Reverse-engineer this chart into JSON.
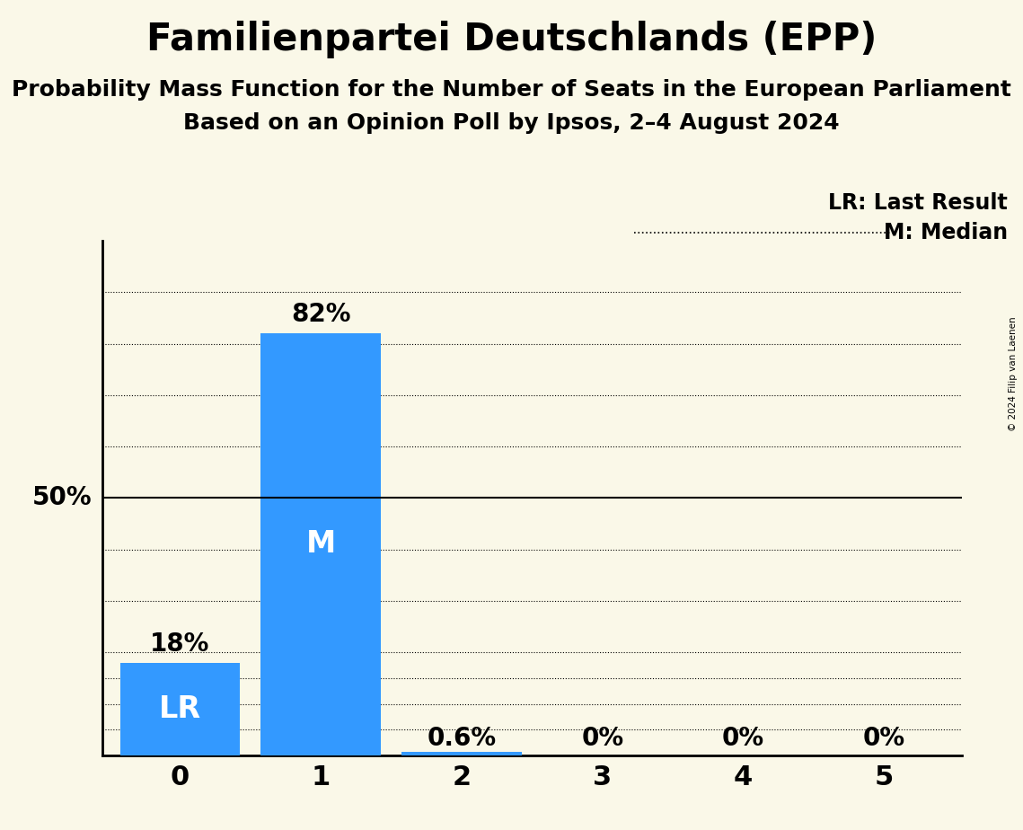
{
  "title": "Familienpartei Deutschlands (EPP)",
  "subtitle1": "Probability Mass Function for the Number of Seats in the European Parliament",
  "subtitle2": "Based on an Opinion Poll by Ipsos, 2–4 August 2024",
  "copyright": "© 2024 Filip van Laenen",
  "x_labels": [
    0,
    1,
    2,
    3,
    4,
    5
  ],
  "values": [
    0.18,
    0.82,
    0.006,
    0.0,
    0.0,
    0.0
  ],
  "value_labels": [
    "18%",
    "82%",
    "0.6%",
    "0%",
    "0%",
    "0%"
  ],
  "bar_color": "#3399ff",
  "background_color": "#faf8e8",
  "lr_bar": 0,
  "median_bar": 1,
  "ylim": [
    0,
    1.0
  ],
  "fifty_pct_line": 0.5,
  "legend_lr": "LR: Last Result",
  "legend_m": "M: Median",
  "title_fontsize": 30,
  "subtitle_fontsize": 18,
  "axis_label_fontsize": 22,
  "value_label_fontsize": 20,
  "bar_label_fontsize": 24,
  "fifty_label": "50%",
  "grid_levels": [
    0.1,
    0.2,
    0.3,
    0.4,
    0.6,
    0.7,
    0.8,
    0.9
  ],
  "extra_grid_levels": [
    0.05,
    0.15
  ]
}
